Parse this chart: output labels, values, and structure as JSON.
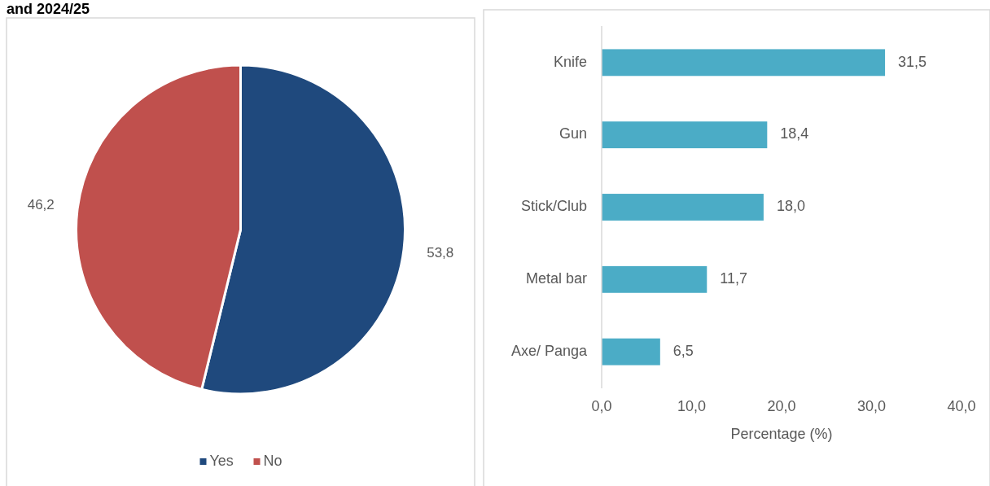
{
  "chart_data": [
    {
      "type": "pie",
      "title": "and 2024/25",
      "categories": [
        "Yes",
        "No"
      ],
      "values": [
        53.8,
        46.2
      ],
      "colors": [
        "#1f497d",
        "#c0504d"
      ],
      "value_labels": [
        "53,8",
        "46,2"
      ],
      "legend": "bottom"
    },
    {
      "type": "bar",
      "orientation": "horizontal",
      "categories": [
        "Knife",
        "Gun",
        "Stick/Club",
        "Metal bar",
        "Axe/ Panga"
      ],
      "values": [
        31.5,
        18.4,
        18.0,
        11.7,
        6.5
      ],
      "value_labels": [
        "31,5",
        "18,4",
        "18,0",
        "11,7",
        "6,5"
      ],
      "color": "#4bacc6",
      "xlim": [
        0,
        40
      ],
      "xticks": [
        {
          "value": 0,
          "label": "0,0"
        },
        {
          "value": 10,
          "label": "10,0"
        },
        {
          "value": 20,
          "label": "20,0"
        },
        {
          "value": 30,
          "label": "30,0"
        },
        {
          "value": 40,
          "label": "40,0"
        }
      ],
      "xlabel": "Percentage (%)",
      "grid": false
    }
  ]
}
